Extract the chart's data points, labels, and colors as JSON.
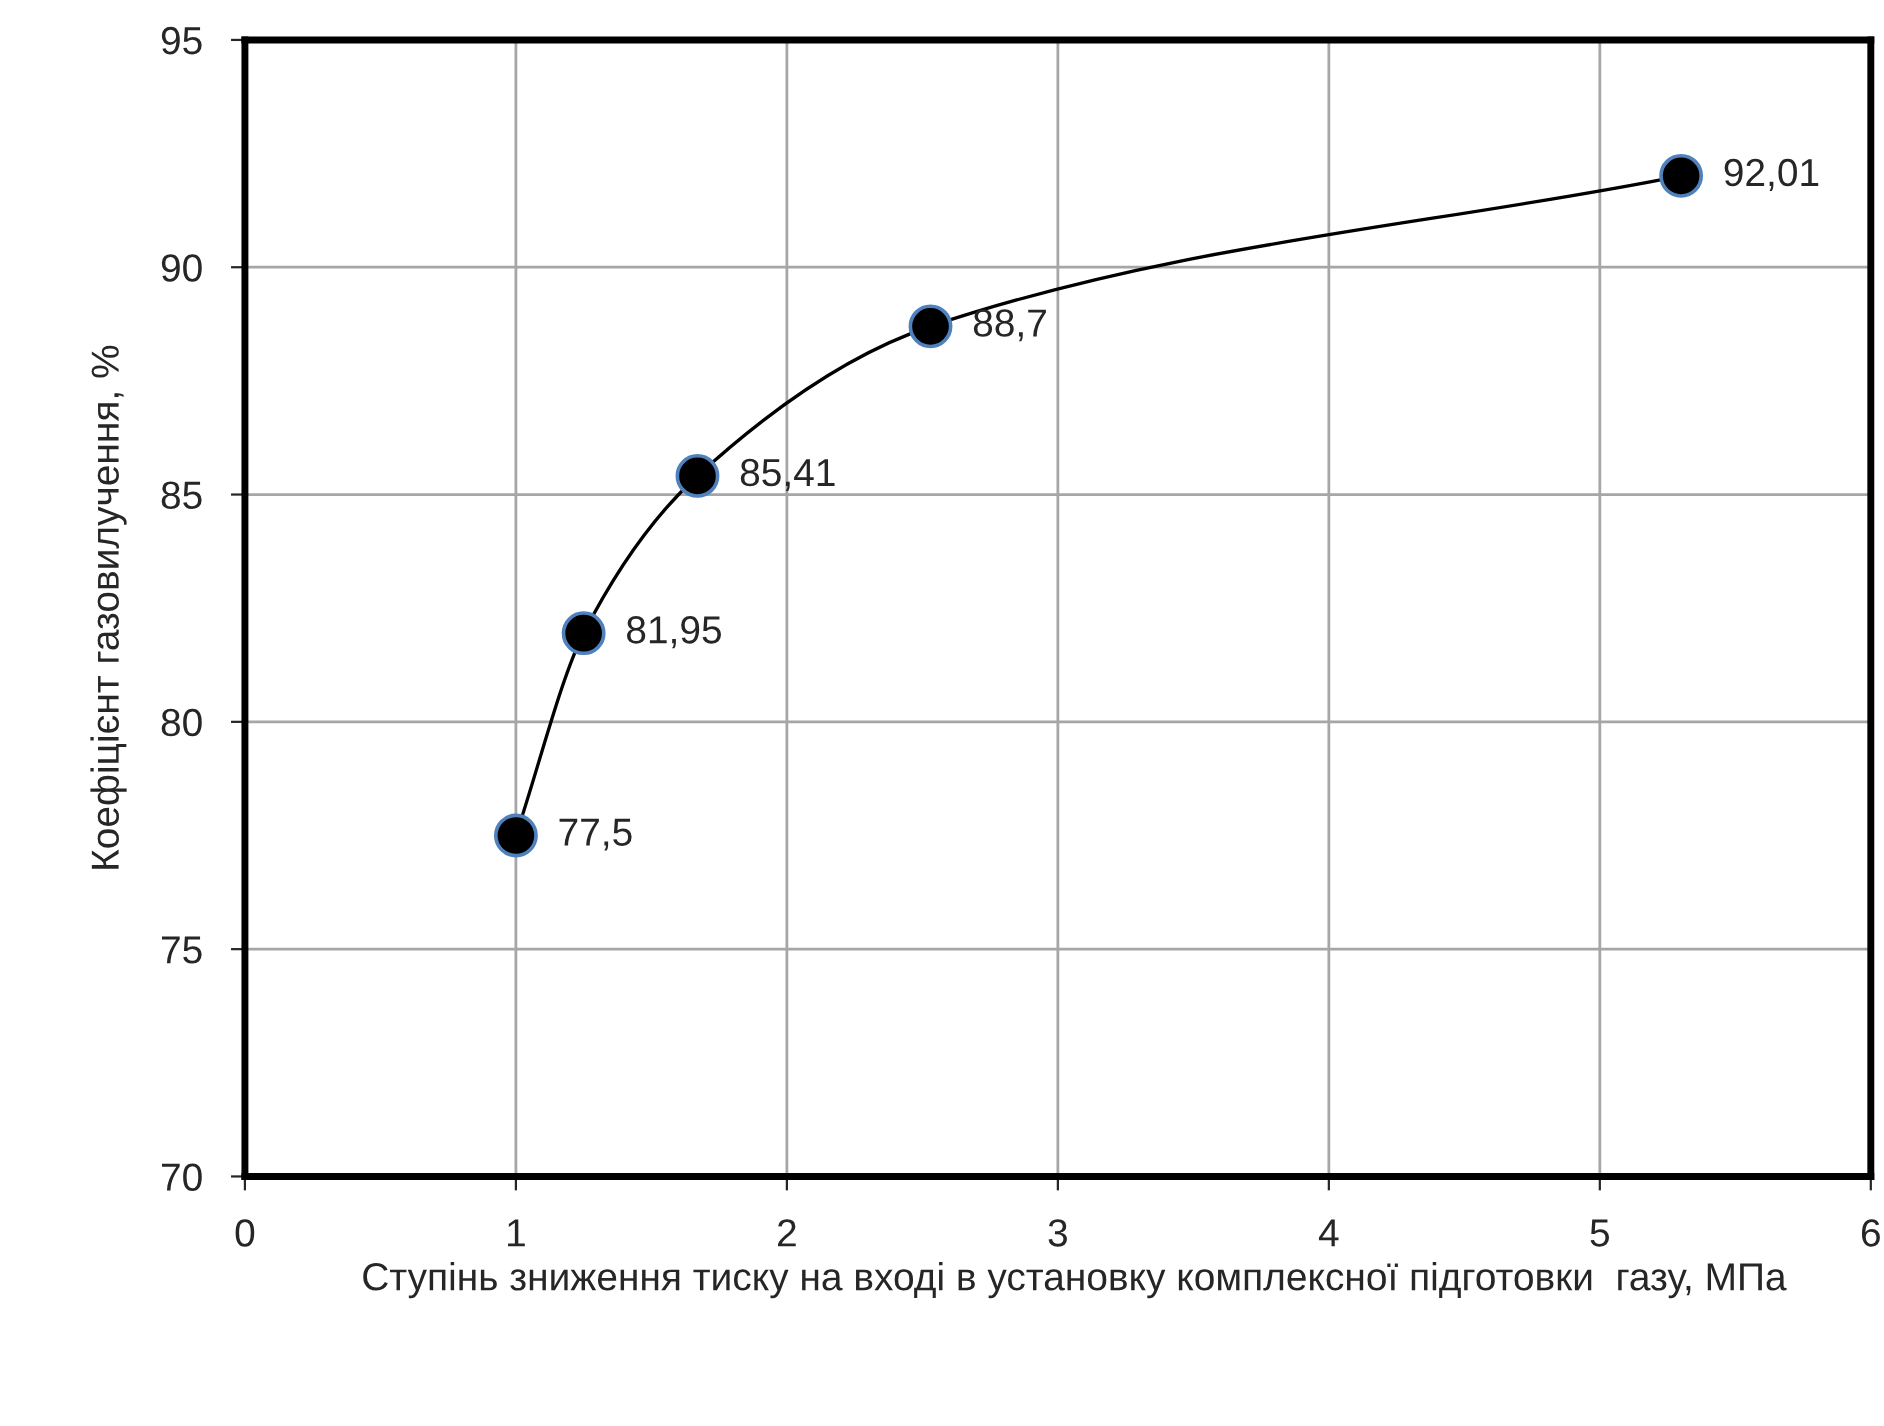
{
  "chart_data": {
    "type": "line",
    "xlabel": "Ступінь зниження тиску на вході в установку комплексної підготовки  газу, МПа",
    "ylabel": "Коефіцієнт газовилучення, %",
    "x": [
      1,
      1.25,
      1.67,
      2.53,
      5.3
    ],
    "series": [
      {
        "color": "#000000",
        "values": [
          77.5,
          81.95,
          85.41,
          88.7,
          92.01
        ],
        "value_labels": [
          "77,5",
          "81,95",
          "85,41",
          "88,7",
          "92,01"
        ]
      }
    ],
    "xlim": [
      0,
      6
    ],
    "xticks": [
      0,
      1,
      2,
      3,
      4,
      5,
      6
    ],
    "ylim": [
      70,
      95
    ],
    "yticks": [
      70,
      75,
      80,
      85,
      90,
      95
    ],
    "grid": true,
    "marker": "circle",
    "line_style": "solid",
    "legend": false
  }
}
